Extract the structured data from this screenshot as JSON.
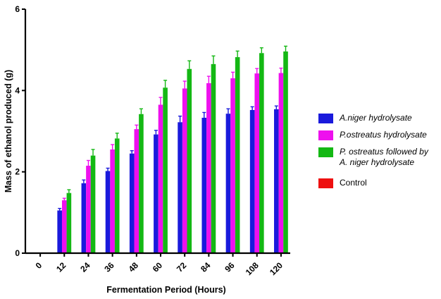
{
  "chart_data": {
    "type": "bar",
    "xlabel": "Fermentation Period (Hours)",
    "ylabel": "Mass of ethanol produced (g)",
    "ylim": [
      0,
      6
    ],
    "yticks": [
      "0",
      "2",
      "4",
      "6"
    ],
    "categories": [
      "0",
      "12",
      "24",
      "36",
      "48",
      "60",
      "72",
      "84",
      "96",
      "108",
      "120"
    ],
    "legend_position": "right",
    "series": [
      {
        "name": "A.niger hydrolysate",
        "color": "#1a1adc",
        "values": [
          0,
          1.05,
          1.72,
          2.02,
          2.45,
          2.92,
          3.22,
          3.33,
          3.43,
          3.52,
          3.54
        ],
        "errors": [
          0,
          0.05,
          0.08,
          0.07,
          0.07,
          0.1,
          0.15,
          0.13,
          0.12,
          0.08,
          0.08
        ]
      },
      {
        "name": "P.ostreatus hydrolysate",
        "color": "#ee10ee",
        "values": [
          0,
          1.3,
          2.15,
          2.55,
          3.05,
          3.65,
          4.05,
          4.18,
          4.3,
          4.42,
          4.43
        ],
        "errors": [
          0,
          0.05,
          0.13,
          0.12,
          0.1,
          0.18,
          0.18,
          0.17,
          0.15,
          0.12,
          0.12
        ]
      },
      {
        "name": "P. ostreatus followed by A. niger hydrolysate",
        "name_lines": [
          "P. ostreatus followed by",
          "A. niger hydrolysate"
        ],
        "color": "#14b814",
        "values": [
          0,
          1.48,
          2.4,
          2.82,
          3.42,
          4.07,
          4.53,
          4.65,
          4.82,
          4.92,
          4.96
        ],
        "errors": [
          0,
          0.08,
          0.15,
          0.13,
          0.13,
          0.18,
          0.2,
          0.2,
          0.15,
          0.13,
          0.13
        ]
      },
      {
        "name": "Control",
        "color": "#ee1010",
        "values": [
          0,
          0,
          0,
          0,
          0,
          0,
          0,
          0,
          0,
          0,
          0
        ],
        "errors": [
          0,
          0,
          0,
          0,
          0,
          0,
          0,
          0,
          0,
          0,
          0
        ]
      }
    ]
  }
}
